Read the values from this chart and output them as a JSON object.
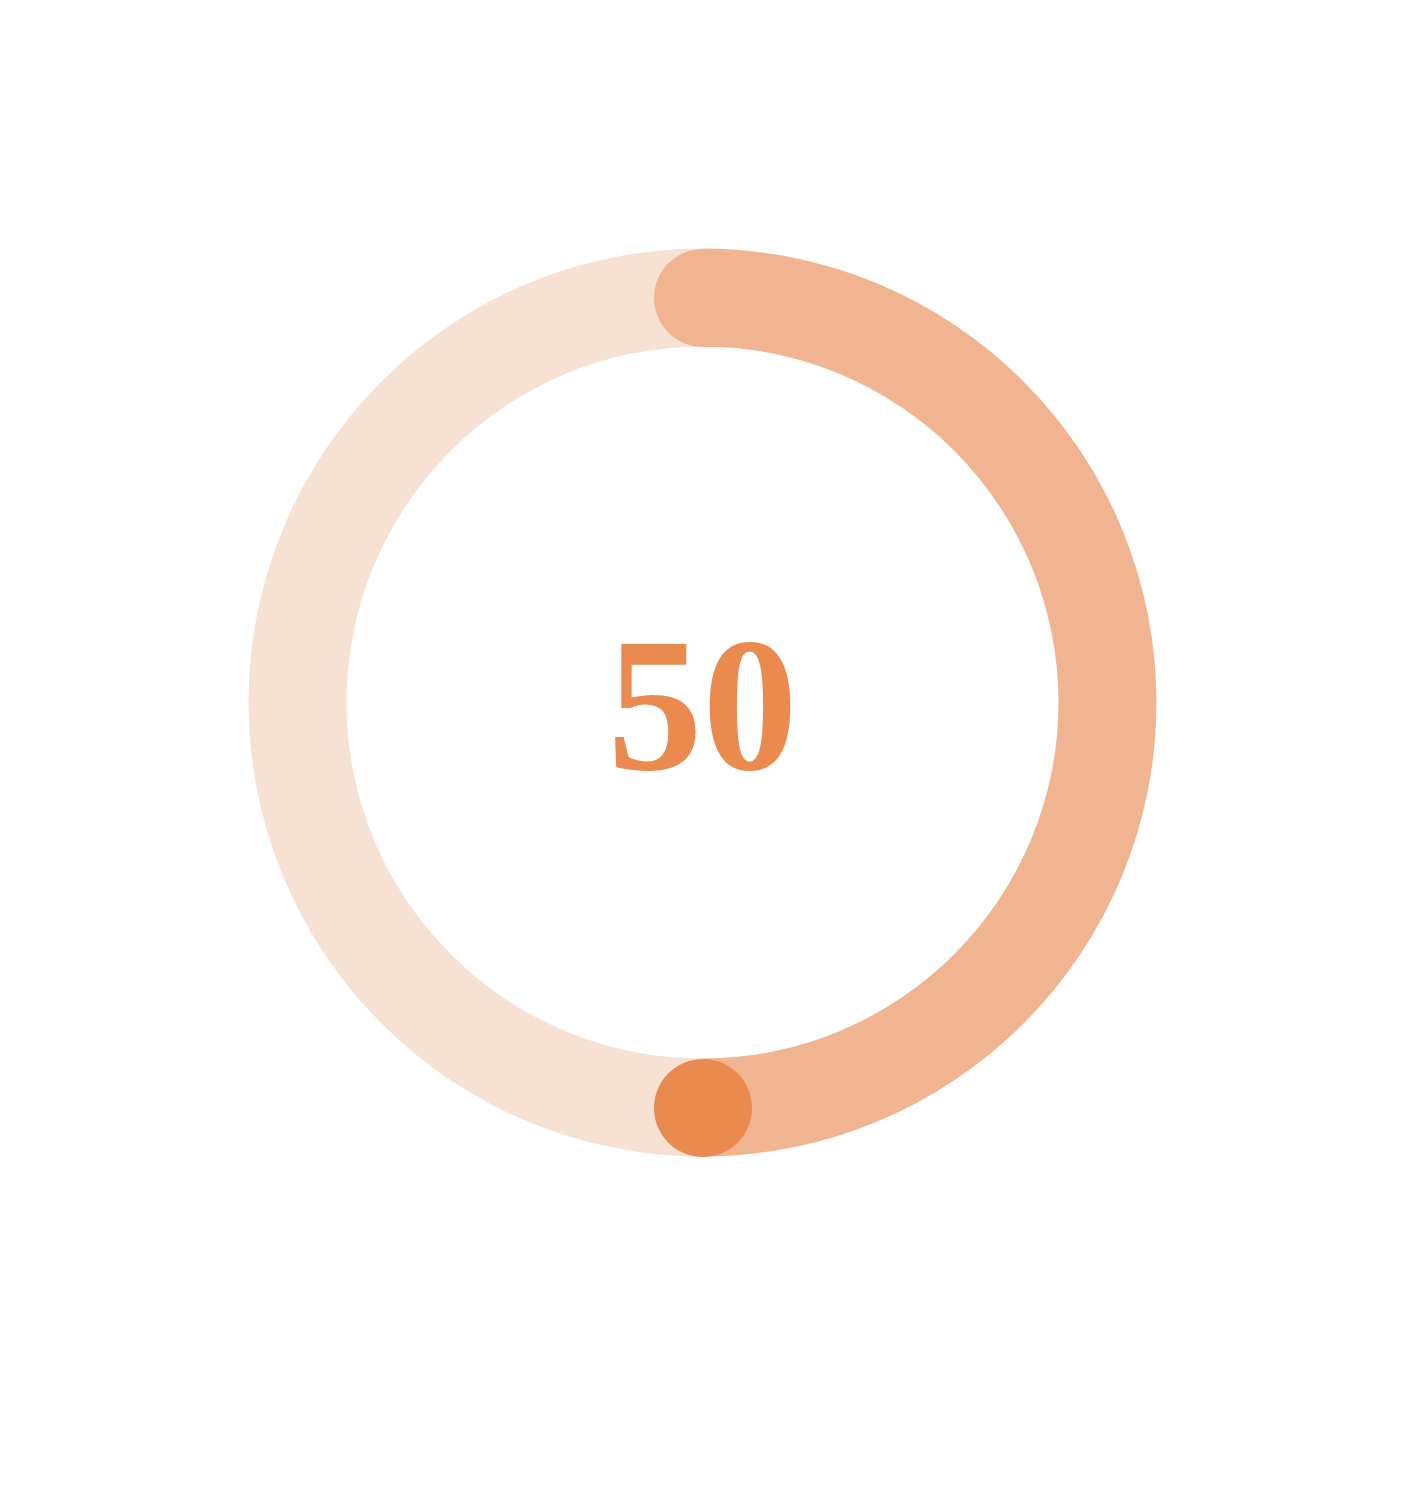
{
  "chart_data": {
    "type": "donut",
    "categories": [
      null,
      null
    ],
    "values": [
      50,
      50
    ],
    "colors": [
      "#f0b590",
      "#f7e1d3"
    ],
    "annotations": [
      "50"
    ],
    "legend": false
  }
}
